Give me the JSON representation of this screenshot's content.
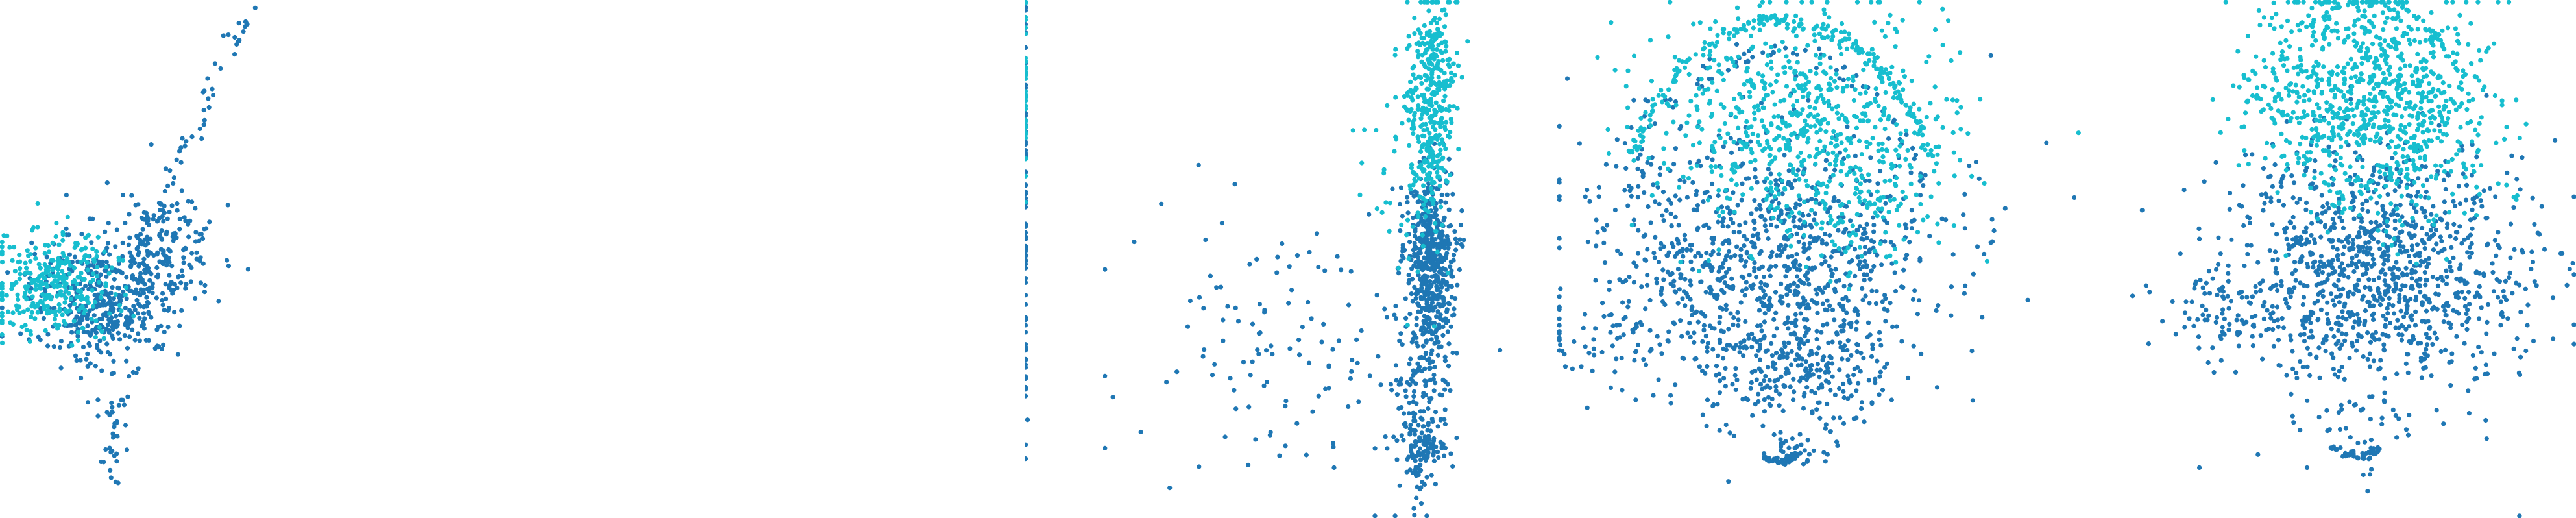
{
  "figure": {
    "background": "#ffffff",
    "colors": {
      "a": "#1f77b4",
      "b": "#17becf"
    },
    "marker": "filled-circle",
    "panels_count": 5
  },
  "chart_data": [
    {
      "type": "scatter",
      "title": "",
      "xlabel": "",
      "ylabel": "",
      "grid": false,
      "axes_visible": false,
      "legend": "none",
      "xlim": [
        0,
        1
      ],
      "ylim": [
        0,
        1
      ],
      "series": [
        {
          "color": "#1f77b4",
          "clusters": [
            {
              "cx": 0.2,
              "cy": 0.58,
              "sx": 0.07,
              "sy": 0.06,
              "n": 420
            },
            {
              "cx": 0.32,
              "cy": 0.48,
              "sx": 0.05,
              "sy": 0.05,
              "n": 160
            },
            {
              "cx": 0.22,
              "cy": 0.8,
              "sx": 0.015,
              "sy": 0.08,
              "n": 40
            }
          ],
          "lines": [
            {
              "x0": 0.25,
              "y0": 0.52,
              "x1": 0.48,
              "y1": 0.02,
              "n": 60,
              "jit": 0.01
            }
          ]
        },
        {
          "color": "#17becf",
          "clusters": [
            {
              "cx": 0.1,
              "cy": 0.55,
              "sx": 0.06,
              "sy": 0.05,
              "n": 320
            }
          ]
        }
      ]
    },
    {
      "type": "scatter",
      "title": "",
      "xlabel": "",
      "ylabel": "",
      "grid": false,
      "axes_visible": false,
      "legend": "none",
      "xlim": [
        0,
        1
      ],
      "ylim": [
        0,
        1
      ],
      "series": [
        {
          "color": "#1f77b4",
          "clusters": [
            {
              "cx": 0.003,
              "cy": 0.4,
              "sx": 0.001,
              "sy": 0.22,
              "n": 90
            },
            {
              "cx": 0.03,
              "cy": 0.81,
              "sx": 0.002,
              "sy": 0.002,
              "n": 1
            },
            {
              "cx": 0.005,
              "cy": 0.46,
              "sx": 0.002,
              "sy": 0.002,
              "n": 1
            }
          ]
        },
        {
          "color": "#17becf",
          "clusters": [
            {
              "cx": 0.003,
              "cy": 0.15,
              "sx": 0.001,
              "sy": 0.1,
              "n": 40
            }
          ]
        }
      ]
    },
    {
      "type": "scatter",
      "title": "",
      "xlabel": "",
      "ylabel": "",
      "grid": false,
      "axes_visible": false,
      "legend": "none",
      "xlim": [
        0,
        1
      ],
      "ylim": [
        0,
        1
      ],
      "series": [
        {
          "color": "#1f77b4",
          "clusters": [
            {
              "cx": 0.72,
              "cy": 0.5,
              "sx": 0.025,
              "sy": 0.09,
              "n": 500
            },
            {
              "cx": 0.7,
              "cy": 0.78,
              "sx": 0.03,
              "sy": 0.12,
              "n": 160
            },
            {
              "cx": 0.71,
              "cy": 0.87,
              "sx": 0.025,
              "sy": 0.03,
              "n": 70
            },
            {
              "cx": 0.4,
              "cy": 0.68,
              "sx": 0.18,
              "sy": 0.12,
              "n": 130
            }
          ]
        },
        {
          "color": "#17becf",
          "clusters": [
            {
              "cx": 0.72,
              "cy": 0.2,
              "sx": 0.025,
              "sy": 0.12,
              "n": 380
            },
            {
              "cx": 0.66,
              "cy": 0.3,
              "sx": 0.05,
              "sy": 0.1,
              "n": 40
            }
          ]
        }
      ]
    },
    {
      "type": "scatter",
      "title": "",
      "xlabel": "",
      "ylabel": "",
      "grid": false,
      "axes_visible": false,
      "legend": "none",
      "xlim": [
        0,
        1
      ],
      "ylim": [
        0,
        1
      ],
      "series": [
        {
          "color": "#1f77b4",
          "clusters": [
            {
              "cx": 0.4,
              "cy": 0.5,
              "sx": 0.17,
              "sy": 0.13,
              "n": 1000
            },
            {
              "cx": 0.47,
              "cy": 0.7,
              "sx": 0.08,
              "sy": 0.06,
              "n": 220
            },
            {
              "cx": 0.12,
              "cy": 0.66,
              "sx": 0.1,
              "sy": 0.03,
              "n": 50
            },
            {
              "cx": 0.47,
              "cy": 0.87,
              "sx": 0.03,
              "sy": 0.015,
              "n": 30
            }
          ],
          "arcs": [
            {
              "cx": 0.42,
              "cy": 0.5,
              "rx": 0.3,
              "ry": 0.4,
              "a0": 200,
              "a1": 340,
              "n": 60,
              "jit": 0.01
            },
            {
              "cx": 0.43,
              "cy": 0.5,
              "rx": 0.13,
              "ry": 0.39,
              "a0": 75,
              "a1": 105,
              "n": 40,
              "jit": 0.004
            }
          ]
        },
        {
          "color": "#17becf",
          "clusters": [
            {
              "cx": 0.46,
              "cy": 0.22,
              "sx": 0.15,
              "sy": 0.1,
              "n": 620
            },
            {
              "cx": 0.58,
              "cy": 0.4,
              "sx": 0.1,
              "sy": 0.06,
              "n": 120
            }
          ],
          "arcs": [
            {
              "cx": 0.43,
              "cy": 0.5,
              "rx": 0.32,
              "ry": 0.46,
              "a0": 205,
              "a1": 335,
              "n": 180,
              "jit": 0.006
            }
          ]
        }
      ]
    },
    {
      "type": "scatter",
      "title": "",
      "xlabel": "",
      "ylabel": "",
      "grid": false,
      "axes_visible": false,
      "legend": "none",
      "xlim": [
        0,
        1
      ],
      "ylim": [
        0,
        1
      ],
      "series": [
        {
          "color": "#1f77b4",
          "clusters": [
            {
              "cx": 0.6,
              "cy": 0.52,
              "sx": 0.15,
              "sy": 0.12,
              "n": 1100
            },
            {
              "cx": 0.3,
              "cy": 0.6,
              "sx": 0.07,
              "sy": 0.04,
              "n": 70
            },
            {
              "cx": 0.56,
              "cy": 0.85,
              "sx": 0.04,
              "sy": 0.05,
              "n": 25
            }
          ],
          "arcs": [
            {
              "cx": 0.56,
              "cy": 0.5,
              "rx": 0.16,
              "ry": 0.38,
              "a0": 72,
              "a1": 108,
              "n": 45,
              "jit": 0.004
            }
          ]
        },
        {
          "color": "#17becf",
          "clusters": [
            {
              "cx": 0.58,
              "cy": 0.18,
              "sx": 0.12,
              "sy": 0.1,
              "n": 820
            },
            {
              "cx": 0.66,
              "cy": 0.3,
              "sx": 0.08,
              "sy": 0.08,
              "n": 120
            }
          ],
          "arcs": [
            {
              "cx": 0.58,
              "cy": 0.5,
              "rx": 0.27,
              "ry": 0.5,
              "a0": 225,
              "a1": 320,
              "n": 60,
              "jit": 0.005
            }
          ]
        }
      ]
    }
  ]
}
